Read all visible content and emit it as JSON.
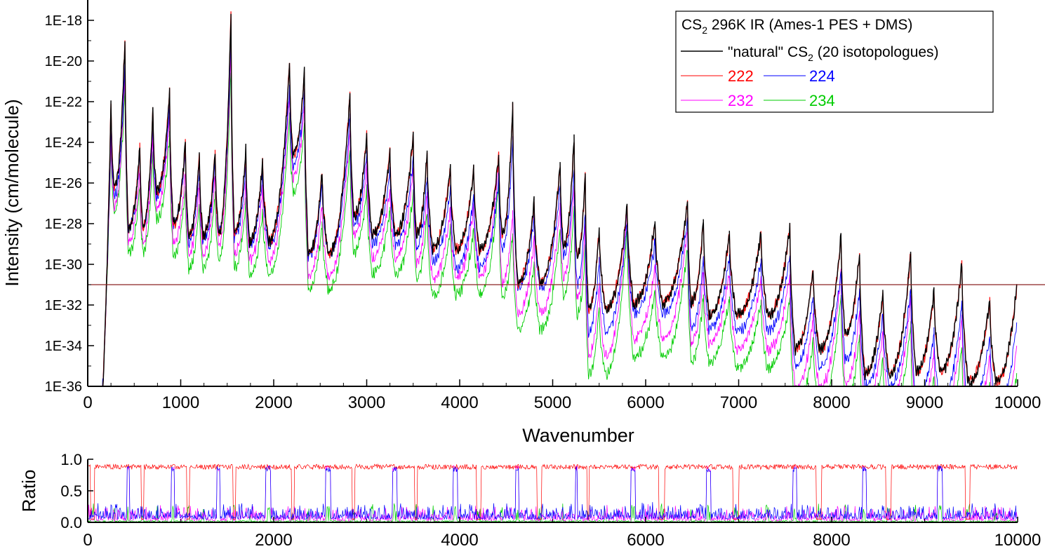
{
  "chart_data": [
    {
      "type": "line",
      "title": "",
      "xlabel": "Wavenumber",
      "ylabel": "Intensity (cm/molecule)",
      "xlim": [
        0,
        10000
      ],
      "ylim_log10": [
        -36,
        -17
      ],
      "y_scale": "log",
      "xticks": [
        0,
        1000,
        2000,
        3000,
        4000,
        5000,
        6000,
        7000,
        8000,
        9000,
        10000
      ],
      "xtick_labels": [
        "0",
        "1000",
        "2000",
        "3000",
        "4000",
        "5000",
        "6000",
        "7000",
        "8000",
        "9000",
        "10000"
      ],
      "yticks_log10": [
        -18,
        -20,
        -22,
        -24,
        -26,
        -28,
        -30,
        -32,
        -34,
        -36
      ],
      "ytick_labels": [
        "1E-18",
        "1E-20",
        "1E-22",
        "1E-24",
        "1E-26",
        "1E-28",
        "1E-30",
        "1E-32",
        "1E-34",
        "1E-36"
      ],
      "reference_line": {
        "y": "1E-31",
        "color": "#8b2323"
      },
      "legend": {
        "placement": "top-right",
        "title_prefix": "CS",
        "title_sub": "2",
        "title_suffix": " 296K IR (Ames-1 PES + DMS)",
        "natural_prefix": "\"natural\" CS",
        "natural_sub": "2",
        "natural_suffix": " (20 isotopologues)"
      },
      "series": [
        {
          "name": "natural",
          "color": "#000000",
          "peaks": [
            [
              0,
              -37
            ],
            [
              250,
              -22.2
            ],
            [
              400,
              -18.9
            ],
            [
              560,
              -24.2
            ],
            [
              700,
              -22.4
            ],
            [
              880,
              -21.4
            ],
            [
              1050,
              -24
            ],
            [
              1200,
              -24.6
            ],
            [
              1370,
              -24.5
            ],
            [
              1540,
              -17.7
            ],
            [
              1700,
              -24.4
            ],
            [
              1880,
              -24.9
            ],
            [
              2170,
              -20.1
            ],
            [
              2330,
              -20.6
            ],
            [
              2520,
              -25.5
            ],
            [
              2820,
              -21.6
            ],
            [
              3000,
              -23.6
            ],
            [
              3250,
              -24.5
            ],
            [
              3500,
              -23.6
            ],
            [
              3650,
              -24.5
            ],
            [
              3900,
              -25.2
            ],
            [
              4150,
              -25.3
            ],
            [
              4420,
              -24.6
            ],
            [
              4570,
              -22.2
            ],
            [
              4800,
              -26.9
            ],
            [
              5080,
              -25.1
            ],
            [
              5230,
              -23.8
            ],
            [
              5350,
              -25.7
            ],
            [
              5500,
              -28.2
            ],
            [
              5800,
              -27.2
            ],
            [
              6100,
              -27.9
            ],
            [
              6450,
              -26.9
            ],
            [
              6620,
              -27.9
            ],
            [
              6900,
              -28.5
            ],
            [
              7240,
              -28.5
            ],
            [
              7550,
              -28.2
            ],
            [
              7800,
              -30.2
            ],
            [
              8100,
              -28.6
            ],
            [
              8300,
              -29.4
            ],
            [
              8550,
              -31.4
            ],
            [
              8850,
              -29.4
            ],
            [
              9100,
              -31.3
            ],
            [
              9400,
              -30
            ],
            [
              9700,
              -31.8
            ],
            [
              9990,
              -31.1
            ]
          ],
          "dip": 4.0
        },
        {
          "name": "222",
          "color": "#ff0000",
          "peaks": [
            [
              0,
              -37
            ],
            [
              250,
              -22.2
            ],
            [
              400,
              -18.9
            ],
            [
              560,
              -24.2
            ],
            [
              700,
              -22.4
            ],
            [
              880,
              -21.4
            ],
            [
              1050,
              -24
            ],
            [
              1200,
              -24.6
            ],
            [
              1370,
              -24.5
            ],
            [
              1540,
              -17.7
            ],
            [
              1700,
              -24.4
            ],
            [
              1880,
              -24.9
            ],
            [
              2170,
              -20.1
            ],
            [
              2330,
              -20.6
            ],
            [
              2520,
              -25.5
            ],
            [
              2820,
              -21.6
            ],
            [
              3000,
              -23.6
            ],
            [
              3250,
              -24.5
            ],
            [
              3500,
              -23.6
            ],
            [
              3650,
              -24.5
            ],
            [
              3900,
              -25.2
            ],
            [
              4150,
              -25.3
            ],
            [
              4420,
              -24.6
            ],
            [
              4570,
              -22.2
            ],
            [
              4800,
              -26.9
            ],
            [
              5080,
              -25.1
            ],
            [
              5230,
              -23.8
            ],
            [
              5350,
              -25.7
            ],
            [
              5500,
              -28.2
            ],
            [
              5800,
              -27.2
            ],
            [
              6100,
              -27.9
            ],
            [
              6450,
              -26.9
            ],
            [
              6620,
              -27.9
            ],
            [
              6900,
              -28.5
            ],
            [
              7240,
              -28.5
            ],
            [
              7550,
              -28.2
            ],
            [
              7800,
              -30.2
            ],
            [
              8100,
              -28.6
            ],
            [
              8300,
              -29.4
            ],
            [
              8550,
              -31.4
            ],
            [
              8850,
              -29.4
            ],
            [
              9100,
              -31.3
            ],
            [
              9400,
              -30
            ],
            [
              9700,
              -31.8
            ],
            [
              9990,
              -31.1
            ]
          ],
          "dip": 4.0
        },
        {
          "name": "224",
          "color": "#0000ff",
          "peaks": [
            [
              0,
              -37
            ],
            [
              250,
              -23.1
            ],
            [
              400,
              -20
            ],
            [
              560,
              -24.7
            ],
            [
              700,
              -23.2
            ],
            [
              880,
              -22.2
            ],
            [
              1050,
              -24.5
            ],
            [
              1200,
              -25.4
            ],
            [
              1370,
              -24.9
            ],
            [
              1540,
              -19
            ],
            [
              1700,
              -25.2
            ],
            [
              1880,
              -25.6
            ],
            [
              2170,
              -21.2
            ],
            [
              2330,
              -21.6
            ],
            [
              2520,
              -26.1
            ],
            [
              2820,
              -22.8
            ],
            [
              3000,
              -24.5
            ],
            [
              3250,
              -25.5
            ],
            [
              3500,
              -24.8
            ],
            [
              3650,
              -25.7
            ],
            [
              3900,
              -26.3
            ],
            [
              4150,
              -26.7
            ],
            [
              4420,
              -25.8
            ],
            [
              4570,
              -23.8
            ],
            [
              4800,
              -27.7
            ],
            [
              5080,
              -26.1
            ],
            [
              5230,
              -25.3
            ],
            [
              5350,
              -27.5
            ],
            [
              5500,
              -29.8
            ],
            [
              5800,
              -27.9
            ],
            [
              6100,
              -28.9
            ],
            [
              6450,
              -27.8
            ],
            [
              6620,
              -29.7
            ],
            [
              6900,
              -29.6
            ],
            [
              7240,
              -29.8
            ],
            [
              7550,
              -29.5
            ],
            [
              7800,
              -31.5
            ],
            [
              8100,
              -30.2
            ],
            [
              8300,
              -31.2
            ],
            [
              8550,
              -32.5
            ],
            [
              8850,
              -31.2
            ],
            [
              9100,
              -33.3
            ],
            [
              9400,
              -31.9
            ],
            [
              9700,
              -33.6
            ],
            [
              9990,
              -32.9
            ]
          ],
          "dip": 3.5
        },
        {
          "name": "232",
          "color": "#ff00ff",
          "peaks": [
            [
              0,
              -37
            ],
            [
              250,
              -23.6
            ],
            [
              400,
              -20.5
            ],
            [
              560,
              -25.4
            ],
            [
              700,
              -23.7
            ],
            [
              880,
              -22.7
            ],
            [
              1050,
              -25.5
            ],
            [
              1200,
              -26
            ],
            [
              1370,
              -25.6
            ],
            [
              1540,
              -19.4
            ],
            [
              1700,
              -26
            ],
            [
              1880,
              -26.3
            ],
            [
              2170,
              -21.6
            ],
            [
              2330,
              -22.2
            ],
            [
              2520,
              -27.1
            ],
            [
              2820,
              -23.3
            ],
            [
              3000,
              -25.1
            ],
            [
              3250,
              -26.2
            ],
            [
              3500,
              -25.4
            ],
            [
              3650,
              -26.4
            ],
            [
              3900,
              -27.2
            ],
            [
              4150,
              -27.1
            ],
            [
              4420,
              -24.8
            ],
            [
              4570,
              -27.4
            ],
            [
              4800,
              -28.9
            ],
            [
              5080,
              -27.1
            ],
            [
              5230,
              -26
            ],
            [
              5350,
              -28.1
            ],
            [
              5500,
              -31
            ],
            [
              5800,
              -27.3
            ],
            [
              6100,
              -30.2
            ],
            [
              6450,
              -28.1
            ],
            [
              6620,
              -30.4
            ],
            [
              6900,
              -30.4
            ],
            [
              7240,
              -30.7
            ],
            [
              7550,
              -30.5
            ],
            [
              7800,
              -32.6
            ],
            [
              8100,
              -30.4
            ],
            [
              8300,
              -32.4
            ],
            [
              8550,
              -33.4
            ],
            [
              8850,
              -31.7
            ],
            [
              9100,
              -34.3
            ],
            [
              9400,
              -32.7
            ],
            [
              9700,
              -34.6
            ],
            [
              9990,
              -34
            ]
          ],
          "dip": 3.5
        },
        {
          "name": "234",
          "color": "#00cc00",
          "peaks": [
            [
              0,
              -37
            ],
            [
              250,
              -24.2
            ],
            [
              400,
              -21.2
            ],
            [
              560,
              -26.2
            ],
            [
              700,
              -24.6
            ],
            [
              880,
              -23.6
            ],
            [
              1050,
              -26.3
            ],
            [
              1200,
              -27
            ],
            [
              1370,
              -26.6
            ],
            [
              1540,
              -20.4
            ],
            [
              1700,
              -26.9
            ],
            [
              1880,
              -27.3
            ],
            [
              2170,
              -22.7
            ],
            [
              2330,
              -23.2
            ],
            [
              2520,
              -28.1
            ],
            [
              2820,
              -24.4
            ],
            [
              3000,
              -26.2
            ],
            [
              3250,
              -27.3
            ],
            [
              3500,
              -26.5
            ],
            [
              3650,
              -27.5
            ],
            [
              3900,
              -28.3
            ],
            [
              4150,
              -28.3
            ],
            [
              4420,
              -26
            ],
            [
              4570,
              -28.5
            ],
            [
              4800,
              -30
            ],
            [
              5080,
              -28.3
            ],
            [
              5230,
              -27.2
            ],
            [
              5350,
              -29.3
            ],
            [
              5500,
              -32.2
            ],
            [
              5800,
              -28.4
            ],
            [
              6100,
              -31.4
            ],
            [
              6450,
              -29.2
            ],
            [
              6620,
              -31.6
            ],
            [
              6900,
              -31.6
            ],
            [
              7240,
              -31.9
            ],
            [
              7550,
              -31.7
            ],
            [
              7800,
              -33.9
            ],
            [
              8100,
              -31.6
            ],
            [
              8300,
              -33.6
            ],
            [
              8550,
              -34.7
            ],
            [
              8850,
              -33
            ],
            [
              9100,
              -35.6
            ],
            [
              9400,
              -34
            ],
            [
              9700,
              -35.9
            ],
            [
              9990,
              -35.3
            ]
          ],
          "dip": 3.2
        }
      ]
    },
    {
      "type": "line",
      "title": "",
      "xlabel": "",
      "ylabel": "Ratio",
      "xlim": [
        0,
        10000
      ],
      "ylim": [
        0,
        1
      ],
      "xticks": [
        0,
        2000,
        4000,
        6000,
        8000,
        10000
      ],
      "xtick_labels": [
        "0",
        "2000",
        "4000",
        "6000",
        "8000",
        "10000"
      ],
      "yticks": [
        0,
        0.5,
        1
      ],
      "ytick_labels": [
        "0.0",
        "0.5",
        "1.0"
      ],
      "series": [
        {
          "name": "222",
          "color": "#ff0000",
          "typical_high": 0.92,
          "typical_low": 0.05
        },
        {
          "name": "224",
          "color": "#0000ff",
          "typical_high": 0.9,
          "typical_low": 0.05
        },
        {
          "name": "232",
          "color": "#ff00ff",
          "typical_high": 0.9,
          "typical_low": 0.02
        },
        {
          "name": "234",
          "color": "#00cc00",
          "typical_high": 0.3,
          "typical_low": 0.0
        }
      ]
    }
  ]
}
